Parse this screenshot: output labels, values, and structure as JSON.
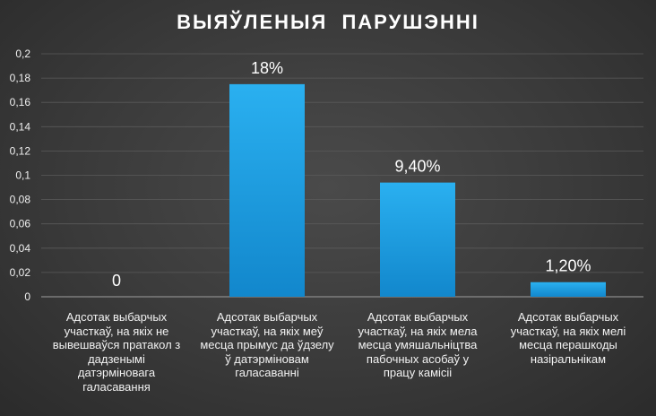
{
  "chart_data": {
    "type": "bar",
    "title": "ВЫЯЎЛЕНЫЯ ПАРУШЭННІ",
    "categories": [
      "Адсотак выбарчых участкаў, на якіх не вывешваўся пратакол з дадзенымі датэрміновага галасавання",
      "Адсотак выбарчых участкаў, на якіх меў месца прымус да ўдзелу ў датэрміновам галасаванні",
      "Адсотак выбарчых участкаў, на якіх мела месца умяшальніцтва пабочных асобаў у працу камісіі",
      "Адсотак выбарчых участкаў, на якіх мелі месца перашкоды назіральнікам"
    ],
    "values": [
      0,
      0.175,
      0.094,
      0.012
    ],
    "data_labels": [
      "0",
      "18%",
      "9,40%",
      "1,20%"
    ],
    "ylim": [
      0,
      0.2
    ],
    "yticks": [
      "0",
      "0,02",
      "0,04",
      "0,06",
      "0,08",
      "0,1",
      "0,12",
      "0,14",
      "0,16",
      "0,18",
      "0,2"
    ],
    "grid": true,
    "legend": "none",
    "colors": {
      "bar_top": "#2ab0f0",
      "bar_bottom": "#1287cc",
      "grid": "#5a5a5a",
      "axis": "#8a8a8a"
    }
  }
}
